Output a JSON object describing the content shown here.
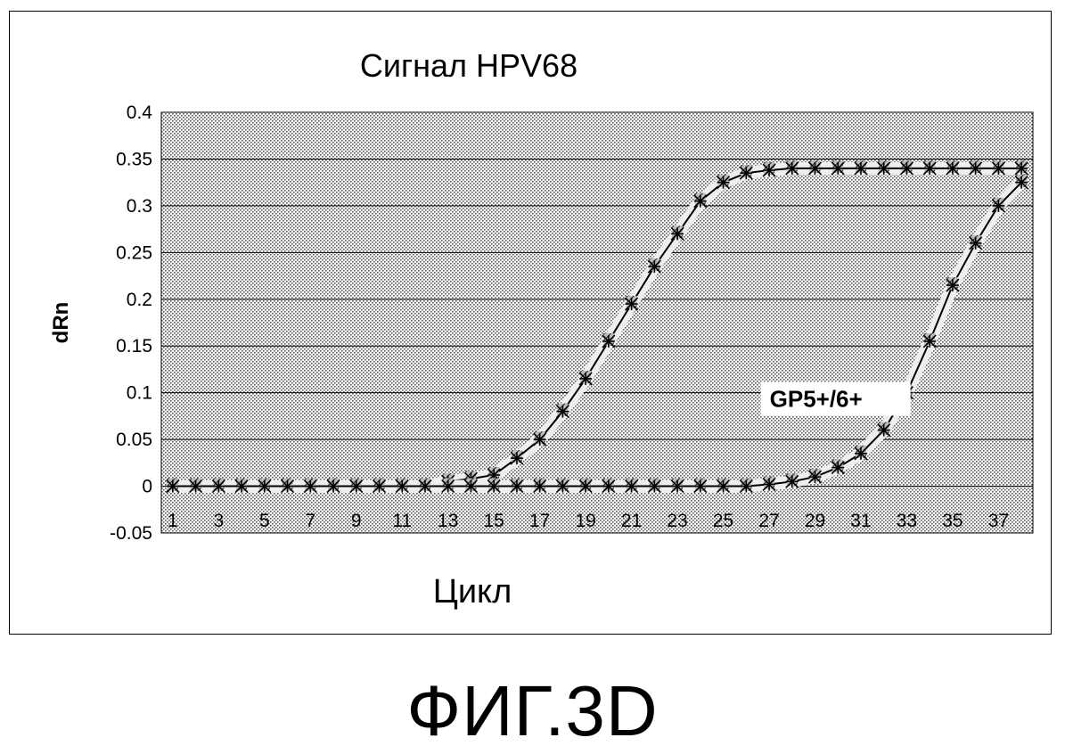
{
  "figure_caption": "ФИГ.3D",
  "chart_data": {
    "type": "line",
    "title": "Сигнал HPV68",
    "xlabel": "Цикл",
    "ylabel": "dRn",
    "x": [
      1,
      2,
      3,
      4,
      5,
      6,
      7,
      8,
      9,
      10,
      11,
      12,
      13,
      14,
      15,
      16,
      17,
      18,
      19,
      20,
      21,
      22,
      23,
      24,
      25,
      26,
      27,
      28,
      29,
      30,
      31,
      32,
      33,
      34,
      35,
      36,
      37,
      38
    ],
    "x_tick_labels": [
      "1",
      "3",
      "5",
      "7",
      "9",
      "11",
      "13",
      "15",
      "17",
      "19",
      "21",
      "23",
      "25",
      "27",
      "29",
      "31",
      "33",
      "35",
      "37"
    ],
    "ylim": [
      -0.05,
      0.4
    ],
    "y_tick_labels": [
      "0.4",
      "0.35",
      "0.3",
      "0.25",
      "0.2",
      "0.15",
      "0.1",
      "0.05",
      "0",
      "-0.05"
    ],
    "grid": "horizontal",
    "background": "dotted",
    "series": [
      {
        "values": [
          0,
          0,
          0,
          0,
          0,
          0,
          0,
          0,
          0,
          0,
          0,
          0,
          0.005,
          0.008,
          0.012,
          0.03,
          0.05,
          0.08,
          0.115,
          0.155,
          0.195,
          0.235,
          0.27,
          0.305,
          0.325,
          0.335,
          0.338,
          0.34,
          0.34,
          0.34,
          0.34,
          0.34,
          0.34,
          0.34,
          0.34,
          0.34,
          0.34,
          0.34
        ],
        "color": "#000000"
      },
      {
        "values": [
          0,
          0,
          0,
          0,
          0,
          0,
          0,
          0,
          0,
          0,
          0,
          0,
          0,
          0,
          0,
          0,
          0,
          0,
          0,
          0,
          0,
          0,
          0,
          0,
          0,
          0,
          0.002,
          0.005,
          0.01,
          0.02,
          0.035,
          0.06,
          0.1,
          0.155,
          0.215,
          0.26,
          0.3,
          0.325
        ],
        "color": "#000000"
      }
    ],
    "annotations": [
      {
        "text": "GP5+/6+",
        "x": 28.5,
        "y": 0.085
      }
    ]
  }
}
